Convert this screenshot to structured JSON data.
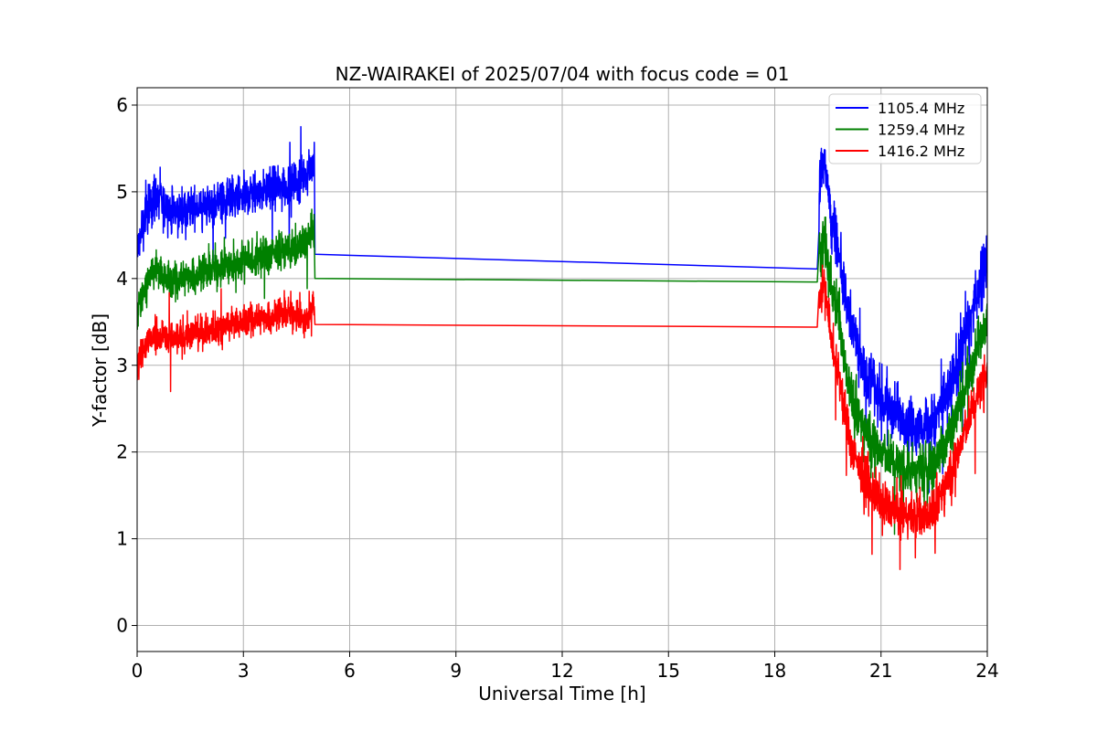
{
  "chart_data": {
    "type": "line",
    "title": "NZ-WAIRAKEI of 2025/07/04 with focus code = 01",
    "xlabel": "Universal Time [h]",
    "ylabel": "Y-factor [dB]",
    "xlim": [
      0,
      24
    ],
    "ylim": [
      -0.3,
      6.2
    ],
    "xticks": [
      0,
      3,
      6,
      9,
      12,
      15,
      18,
      21,
      24
    ],
    "yticks": [
      0,
      1,
      2,
      3,
      4,
      5,
      6
    ],
    "grid": true,
    "legend_position": "top-right",
    "series": [
      {
        "name": "1105.4 MHz",
        "color": "#0000ff",
        "points": [
          [
            0.0,
            4.3
          ],
          [
            0.25,
            4.75
          ],
          [
            0.5,
            4.95
          ],
          [
            1.0,
            4.75
          ],
          [
            1.5,
            4.8
          ],
          [
            2.0,
            4.85
          ],
          [
            2.5,
            4.9
          ],
          [
            3.0,
            4.95
          ],
          [
            3.5,
            5.0
          ],
          [
            4.0,
            5.05
          ],
          [
            4.5,
            5.1
          ],
          [
            4.8,
            5.25
          ],
          [
            5.0,
            5.3
          ],
          [
            5.02,
            4.28
          ],
          [
            19.2,
            4.11
          ],
          [
            19.25,
            5.0
          ],
          [
            19.4,
            5.4
          ],
          [
            19.6,
            4.6
          ],
          [
            19.8,
            4.3
          ],
          [
            20.0,
            3.8
          ],
          [
            20.2,
            3.4
          ],
          [
            20.5,
            3.0
          ],
          [
            21.0,
            2.6
          ],
          [
            21.5,
            2.45
          ],
          [
            22.0,
            2.25
          ],
          [
            22.5,
            2.35
          ],
          [
            23.0,
            2.8
          ],
          [
            23.5,
            3.5
          ],
          [
            24.0,
            4.3
          ]
        ]
      },
      {
        "name": "1259.4 MHz",
        "color": "#008000",
        "points": [
          [
            0.0,
            3.6
          ],
          [
            0.25,
            3.95
          ],
          [
            0.5,
            4.1
          ],
          [
            1.0,
            3.95
          ],
          [
            1.5,
            4.05
          ],
          [
            2.0,
            4.1
          ],
          [
            2.5,
            4.15
          ],
          [
            3.0,
            4.2
          ],
          [
            3.5,
            4.25
          ],
          [
            4.0,
            4.3
          ],
          [
            4.5,
            4.35
          ],
          [
            4.8,
            4.45
          ],
          [
            5.0,
            4.55
          ],
          [
            5.02,
            4.0
          ],
          [
            19.2,
            3.96
          ],
          [
            19.25,
            4.3
          ],
          [
            19.4,
            4.5
          ],
          [
            19.6,
            3.9
          ],
          [
            19.8,
            3.6
          ],
          [
            20.0,
            3.0
          ],
          [
            20.2,
            2.6
          ],
          [
            20.5,
            2.3
          ],
          [
            21.0,
            2.0
          ],
          [
            21.5,
            1.85
          ],
          [
            22.0,
            1.75
          ],
          [
            22.5,
            1.85
          ],
          [
            23.0,
            2.3
          ],
          [
            23.5,
            2.9
          ],
          [
            24.0,
            3.6
          ]
        ]
      },
      {
        "name": "1416.2 MHz",
        "color": "#ff0000",
        "points": [
          [
            0.0,
            3.0
          ],
          [
            0.25,
            3.25
          ],
          [
            0.5,
            3.35
          ],
          [
            1.0,
            3.3
          ],
          [
            1.5,
            3.35
          ],
          [
            2.0,
            3.4
          ],
          [
            2.5,
            3.45
          ],
          [
            3.0,
            3.5
          ],
          [
            3.5,
            3.55
          ],
          [
            4.0,
            3.6
          ],
          [
            4.5,
            3.6
          ],
          [
            4.7,
            3.5
          ],
          [
            4.8,
            3.55
          ],
          [
            5.0,
            3.75
          ],
          [
            5.02,
            3.47
          ],
          [
            19.2,
            3.44
          ],
          [
            19.25,
            3.8
          ],
          [
            19.4,
            3.9
          ],
          [
            19.6,
            3.3
          ],
          [
            19.8,
            2.9
          ],
          [
            20.0,
            2.4
          ],
          [
            20.2,
            2.0
          ],
          [
            20.5,
            1.7
          ],
          [
            21.0,
            1.4
          ],
          [
            21.5,
            1.3
          ],
          [
            22.0,
            1.25
          ],
          [
            22.5,
            1.35
          ],
          [
            23.0,
            1.8
          ],
          [
            23.5,
            2.4
          ],
          [
            24.0,
            3.0
          ]
        ]
      }
    ]
  }
}
